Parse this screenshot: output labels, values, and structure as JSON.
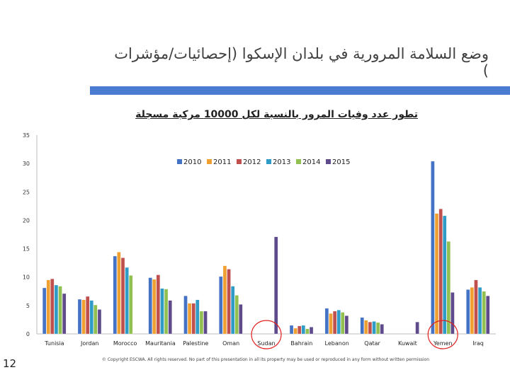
{
  "slide": {
    "title": "وضع السلامة المرورية في بلدان الإسكوا (إحصائيات/مؤشرات )",
    "page_number": "12",
    "copyright": "© Copyright ESCWA. All rights reserved. No part of this presentation in all its property may be used or reproduced in any form without written permission",
    "accent_color": "#4a7bd0"
  },
  "chart_data": {
    "type": "bar",
    "title": "تطور عدد وفيات المرور بالنسبة لكل 10000 مركبة مسجلة",
    "xlabel": "",
    "ylabel": "",
    "ylim": [
      0,
      35
    ],
    "yticks": [
      0,
      5,
      10,
      15,
      20,
      25,
      30,
      35
    ],
    "grid": false,
    "legend_position": "top-right",
    "categories": [
      "Tunisia",
      "Jordan",
      "Morocco",
      "Mauritania",
      "Palestine",
      "Oman",
      "Sudan",
      "Bahrain",
      "Lebanon",
      "Qatar",
      "Kuwait",
      "Yemen",
      "Iraq"
    ],
    "highlighted_categories": [
      "Sudan",
      "Yemen"
    ],
    "highlight_color": "#e02020",
    "series": [
      {
        "name": "2010",
        "color": "#4472c4",
        "values": [
          8.1,
          6.1,
          13.7,
          9.9,
          6.7,
          10.1,
          null,
          1.5,
          4.5,
          2.9,
          null,
          30.4,
          7.8
        ]
      },
      {
        "name": "2011",
        "color": "#f0a030",
        "values": [
          9.5,
          6.0,
          14.4,
          9.6,
          5.4,
          12.0,
          null,
          1.0,
          3.6,
          2.4,
          null,
          21.2,
          8.2
        ]
      },
      {
        "name": "2012",
        "color": "#c0504d",
        "values": [
          9.7,
          6.6,
          13.4,
          10.4,
          5.4,
          11.4,
          null,
          1.4,
          4.0,
          2.1,
          null,
          22.0,
          9.5
        ]
      },
      {
        "name": "2013",
        "color": "#2e9cc7",
        "values": [
          8.6,
          5.9,
          11.7,
          8.0,
          6.0,
          8.4,
          null,
          1.5,
          4.2,
          2.2,
          null,
          20.8,
          8.2
        ]
      },
      {
        "name": "2014",
        "color": "#92c050",
        "values": [
          8.4,
          5.1,
          10.3,
          7.9,
          4.0,
          6.8,
          null,
          0.9,
          3.8,
          2.0,
          null,
          16.3,
          7.5
        ]
      },
      {
        "name": "2015",
        "color": "#5f4b8b",
        "values": [
          7.1,
          4.3,
          null,
          5.9,
          4.0,
          5.2,
          17.1,
          1.2,
          3.2,
          1.7,
          2.1,
          7.3,
          6.7
        ]
      }
    ]
  }
}
